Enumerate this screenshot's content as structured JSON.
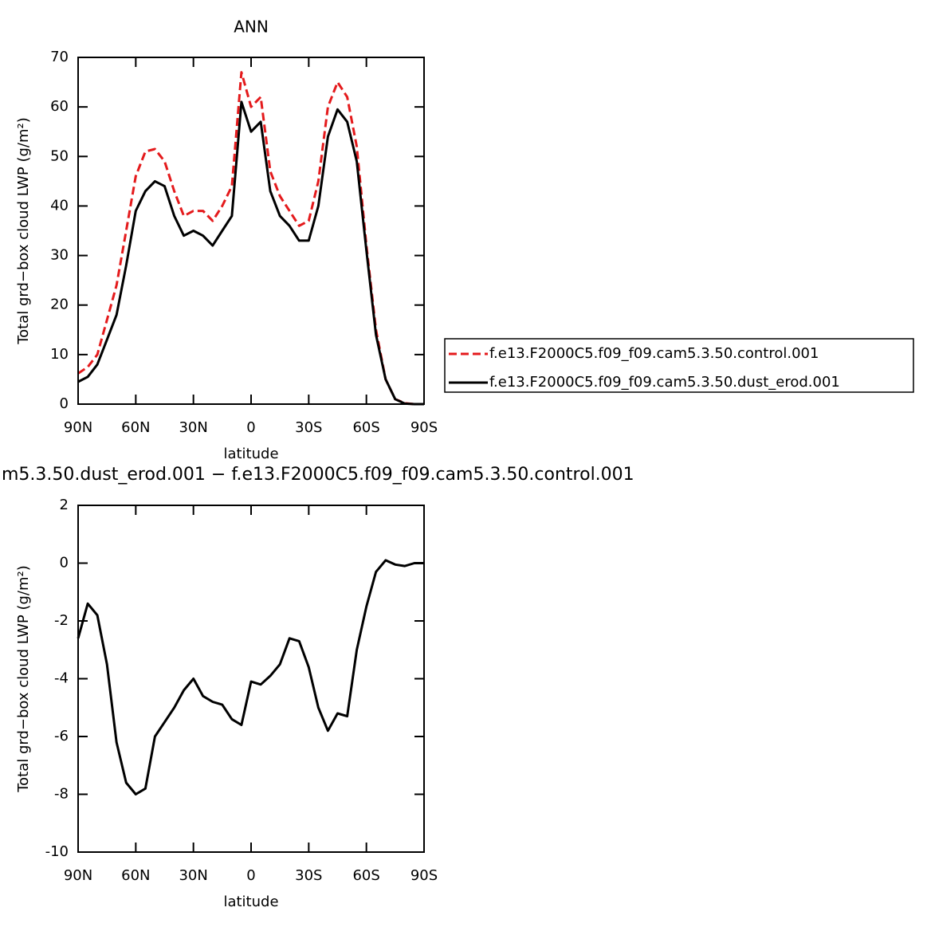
{
  "chart_data": [
    {
      "type": "line",
      "title": "ANN",
      "xlabel": "latitude",
      "ylabel": "Total grd−box cloud LWP (g/m²)",
      "x": [
        90,
        85,
        80,
        75,
        70,
        65,
        60,
        55,
        50,
        45,
        40,
        35,
        30,
        25,
        20,
        15,
        10,
        5,
        0,
        -5,
        -10,
        -15,
        -20,
        -25,
        -30,
        -35,
        -40,
        -45,
        -50,
        -55,
        -60,
        -65,
        -70,
        -75,
        -80,
        -85,
        -90
      ],
      "series": [
        {
          "name": "f.e13.F2000C5.f09_f09.cam5.3.50.control.001",
          "color": "#e41a1c",
          "dash": true,
          "values": [
            6.2,
            7.5,
            10,
            17,
            24,
            35,
            46,
            51,
            51.5,
            49,
            43,
            38,
            39,
            39,
            37,
            40,
            44,
            67,
            60,
            62,
            47,
            42,
            39,
            36,
            37,
            45,
            60,
            65,
            62,
            52,
            32,
            15,
            5,
            1,
            0.2,
            0,
            0
          ]
        },
        {
          "name": "f.e13.F2000C5.f09_f09.cam5.3.50.dust_erod.001",
          "color": "#000000",
          "dash": false,
          "values": [
            4.5,
            5.5,
            8,
            13,
            18,
            28,
            39,
            43,
            45,
            44,
            38,
            34,
            35,
            34,
            32,
            35,
            38,
            61,
            55,
            57,
            43,
            38,
            36,
            33,
            33,
            40,
            54,
            59.5,
            57,
            49,
            31,
            14,
            5,
            1,
            0.1,
            0,
            0
          ]
        }
      ],
      "xlim": [
        90,
        -90
      ],
      "xticks": [
        {
          "value": 90,
          "label": "90N"
        },
        {
          "value": 60,
          "label": "60N"
        },
        {
          "value": 30,
          "label": "30N"
        },
        0,
        {
          "value": -30,
          "label": "30S"
        },
        {
          "value": -60,
          "label": "60S"
        },
        {
          "value": -90,
          "label": "90S"
        }
      ],
      "ylim": [
        0,
        70
      ],
      "yticks": [
        0,
        10,
        20,
        30,
        40,
        50,
        60,
        70
      ],
      "legend": "outside-right"
    },
    {
      "type": "line",
      "title": "m5.3.50.dust_erod.001 − f.e13.F2000C5.f09_f09.cam5.3.50.control.001",
      "xlabel": "latitude",
      "ylabel": "Total grd−box cloud LWP (g/m²)",
      "x": [
        90,
        85,
        80,
        75,
        70,
        65,
        60,
        55,
        50,
        45,
        40,
        35,
        30,
        25,
        20,
        15,
        10,
        5,
        0,
        -5,
        -10,
        -15,
        -20,
        -25,
        -30,
        -35,
        -40,
        -45,
        -50,
        -55,
        -60,
        -65,
        -70,
        -75,
        -80,
        -85,
        -90
      ],
      "series": [
        {
          "color": "#000000",
          "dash": false,
          "values": [
            -2.6,
            -1.4,
            -1.8,
            -3.5,
            -6.2,
            -7.6,
            -8.0,
            -7.8,
            -6.0,
            -5.5,
            -5.0,
            -4.4,
            -4.0,
            -4.6,
            -4.8,
            -4.9,
            -5.4,
            -5.6,
            -4.1,
            -4.2,
            -3.9,
            -3.5,
            -2.6,
            -2.7,
            -3.6,
            -5.0,
            -5.8,
            -5.2,
            -5.3,
            -3.0,
            -1.5,
            -0.3,
            0.1,
            -0.05,
            -0.1,
            0,
            0
          ]
        }
      ],
      "xlim": [
        90,
        -90
      ],
      "xticks": [
        {
          "value": 90,
          "label": "90N"
        },
        {
          "value": 60,
          "label": "60N"
        },
        {
          "value": 30,
          "label": "30N"
        },
        0,
        {
          "value": -30,
          "label": "30S"
        },
        {
          "value": -60,
          "label": "60S"
        },
        {
          "value": -90,
          "label": "90S"
        }
      ],
      "ylim": [
        -10,
        2
      ],
      "yticks": [
        -10,
        -8,
        -6,
        -4,
        -2,
        0,
        2
      ]
    }
  ]
}
